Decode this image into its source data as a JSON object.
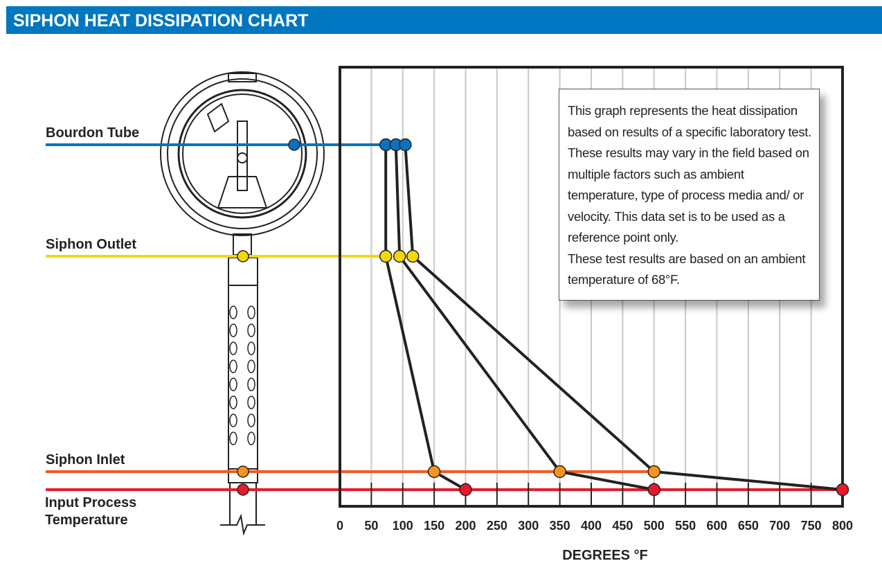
{
  "header": {
    "title": "SIPHON HEAT DISSIPATION CHART"
  },
  "note": {
    "paragraph1": "This graph represents the heat dissipation based on results of a specific laboratory test. These results may vary in the field based on multiple factors such as ambient temperature, type of process media and/ or velocity. This data set is to be used as a reference point only.",
    "paragraph2": "These test results are based on an ambient temperature of 68°F."
  },
  "chart_data": {
    "type": "line",
    "xlabel": "DEGREES °F",
    "xlim": [
      0,
      800
    ],
    "xticks": [
      "0",
      "50",
      "100",
      "150",
      "200",
      "250",
      "300",
      "350",
      "400",
      "450",
      "500",
      "550",
      "600",
      "650",
      "700",
      "750",
      "800"
    ],
    "grid": true,
    "levels": [
      {
        "label": "Bourdon Tube",
        "color": "#0a72bf"
      },
      {
        "label": "Siphon Outlet",
        "color": "#f5d800"
      },
      {
        "label": "Siphon Inlet",
        "color": "#f15a24"
      },
      {
        "label": "Input Process Temperature",
        "color": "#e8192c"
      }
    ],
    "point_colors": {
      "Bourdon Tube": "#0a72bf",
      "Siphon Outlet": "#f5d800",
      "Siphon Inlet": "#f7941d",
      "Input Process Temperature": "#e8192c"
    },
    "series": [
      {
        "values": {
          "Input Process Temperature": 200,
          "Siphon Inlet": 150,
          "Siphon Outlet": 73,
          "Bourdon Tube": 73
        }
      },
      {
        "values": {
          "Input Process Temperature": 500,
          "Siphon Inlet": 350,
          "Siphon Outlet": 95,
          "Bourdon Tube": 89
        }
      },
      {
        "values": {
          "Input Process Temperature": 800,
          "Siphon Inlet": 500,
          "Siphon Outlet": 116,
          "Bourdon Tube": 104
        }
      }
    ]
  }
}
